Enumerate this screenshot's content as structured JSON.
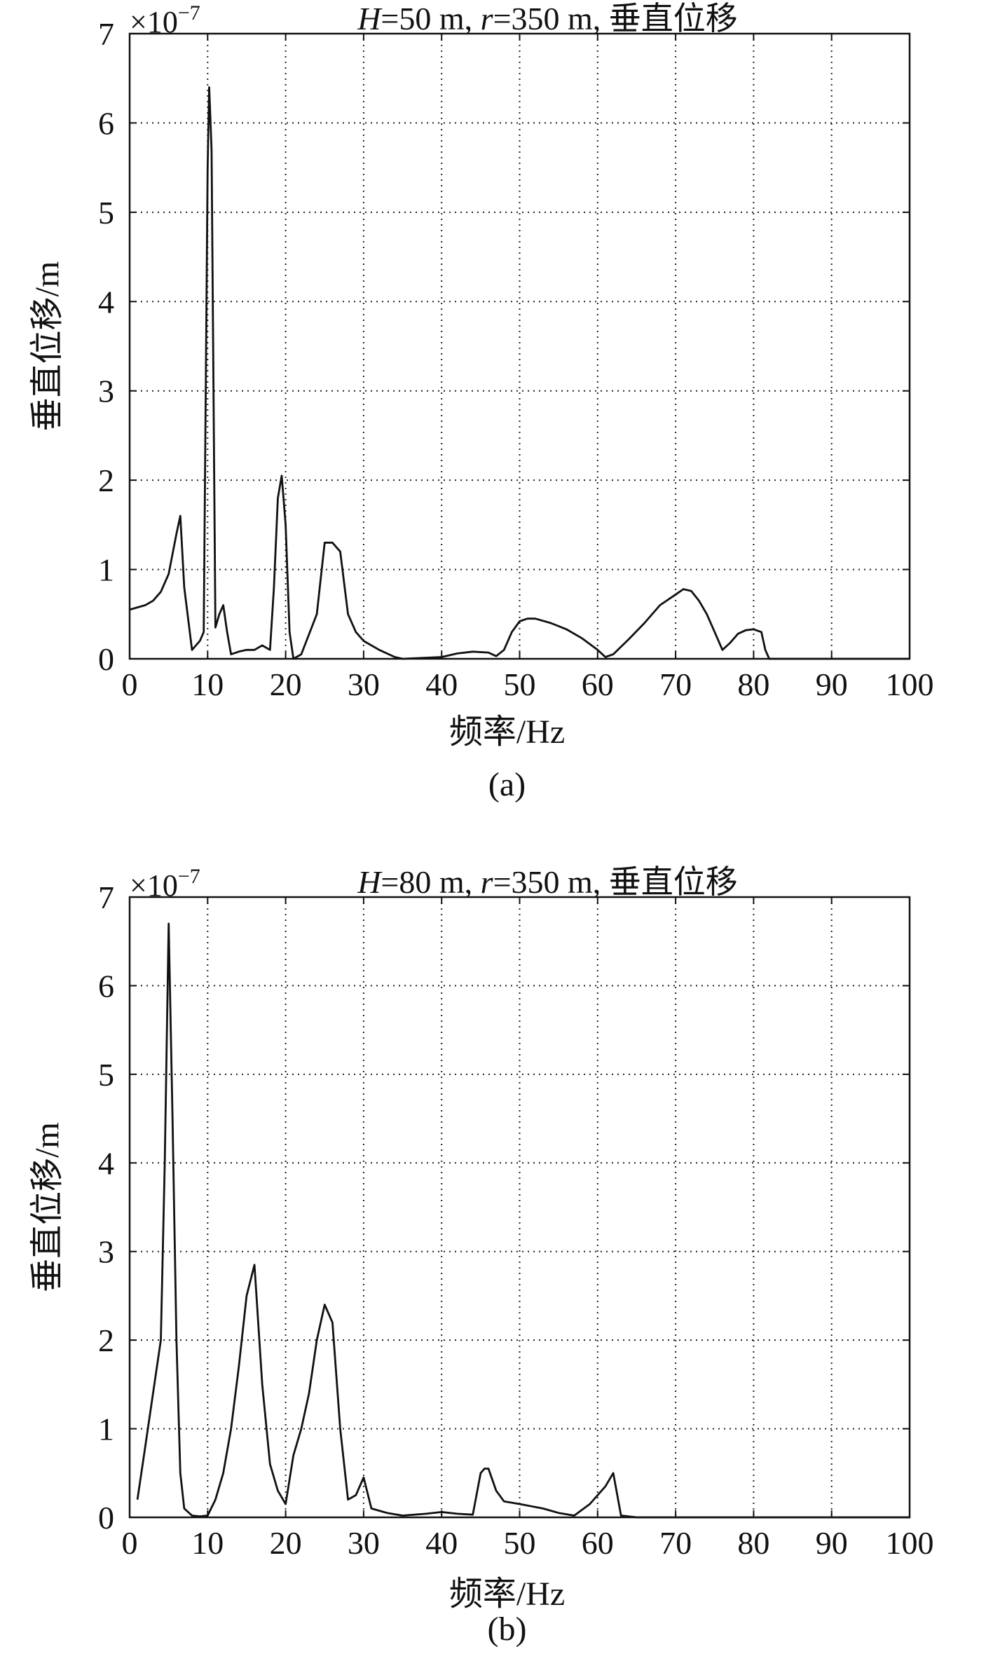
{
  "chart_data": [
    {
      "type": "line",
      "panel_label": "(a)",
      "title_parts": [
        {
          "text": "H",
          "italic": true
        },
        {
          "text": "=50 m, ",
          "italic": false
        },
        {
          "text": "r",
          "italic": true
        },
        {
          "text": "=350 m, 垂直位移",
          "italic": false
        }
      ],
      "exponent_label": "×10",
      "exponent_power": "−7",
      "xlabel": "频率/Hz",
      "ylabel": "垂直位移/m",
      "xlim": [
        0,
        100
      ],
      "ylim": [
        0,
        7
      ],
      "xticks": [
        0,
        10,
        20,
        30,
        40,
        50,
        60,
        70,
        80,
        90,
        100
      ],
      "yticks": [
        0,
        1,
        2,
        3,
        4,
        5,
        6,
        7
      ],
      "grid": true,
      "line_color": "#111111",
      "series": [
        {
          "x": [
            0,
            2,
            3,
            4,
            5,
            6,
            6.5,
            7,
            8,
            9,
            9.5,
            10,
            10.2,
            10.5,
            11,
            11.5,
            12,
            12.5,
            13,
            14,
            15,
            16,
            17,
            18,
            18.5,
            19,
            19.5,
            20,
            20.5,
            21,
            22,
            24,
            25,
            26,
            27,
            28,
            29,
            30,
            32,
            34,
            35,
            40,
            42,
            44,
            46,
            47,
            48,
            49,
            50,
            51,
            52,
            54,
            56,
            58,
            60,
            61,
            62,
            64,
            66,
            68,
            70,
            71,
            72,
            73,
            74,
            75,
            76,
            77,
            78,
            79,
            80,
            81,
            81.5,
            82,
            85,
            90,
            95,
            100
          ],
          "y": [
            0.55,
            0.6,
            0.65,
            0.75,
            0.95,
            1.4,
            1.6,
            0.8,
            0.1,
            0.2,
            0.3,
            5.5,
            6.4,
            5.7,
            0.35,
            0.5,
            0.6,
            0.3,
            0.05,
            0.08,
            0.1,
            0.1,
            0.15,
            0.1,
            0.8,
            1.8,
            2.05,
            1.5,
            0.3,
            0.0,
            0.05,
            0.5,
            1.3,
            1.3,
            1.2,
            0.5,
            0.3,
            0.2,
            0.1,
            0.02,
            0.0,
            0.02,
            0.06,
            0.08,
            0.07,
            0.03,
            0.1,
            0.3,
            0.42,
            0.45,
            0.45,
            0.4,
            0.33,
            0.23,
            0.1,
            0.02,
            0.05,
            0.22,
            0.4,
            0.6,
            0.72,
            0.78,
            0.76,
            0.65,
            0.5,
            0.3,
            0.1,
            0.18,
            0.28,
            0.32,
            0.33,
            0.3,
            0.1,
            0.0,
            0.0,
            0.0,
            0.0,
            0.0
          ]
        }
      ]
    },
    {
      "type": "line",
      "panel_label": "(b)",
      "title_parts": [
        {
          "text": "H",
          "italic": true
        },
        {
          "text": "=80 m, ",
          "italic": false
        },
        {
          "text": "r",
          "italic": true
        },
        {
          "text": "=350 m, 垂直位移",
          "italic": false
        }
      ],
      "exponent_label": "×10",
      "exponent_power": "−7",
      "xlabel": "频率/Hz",
      "ylabel": "垂直位移/m",
      "xlim": [
        0,
        100
      ],
      "ylim": [
        0,
        7
      ],
      "xticks": [
        0,
        10,
        20,
        30,
        40,
        50,
        60,
        70,
        80,
        90,
        100
      ],
      "yticks": [
        0,
        1,
        2,
        3,
        4,
        5,
        6,
        7
      ],
      "grid": true,
      "line_color": "#111111",
      "series": [
        {
          "x": [
            1,
            2,
            3,
            4,
            4.5,
            5,
            5.5,
            6,
            6.5,
            7,
            8,
            9,
            10,
            11,
            12,
            13,
            14,
            15,
            16,
            17,
            18,
            19,
            20,
            21,
            22,
            23,
            24,
            25,
            26,
            27,
            28,
            29,
            30,
            31,
            33,
            35,
            38,
            40,
            42,
            44,
            45,
            45.5,
            46,
            47,
            48,
            50,
            53,
            55,
            57,
            59,
            61,
            62,
            63,
            65,
            70,
            80,
            90,
            100
          ],
          "y": [
            0.2,
            0.8,
            1.4,
            2.0,
            4.0,
            6.7,
            4.5,
            2.0,
            0.5,
            0.1,
            0.02,
            0.01,
            0.02,
            0.2,
            0.5,
            1.0,
            1.7,
            2.5,
            2.85,
            1.5,
            0.6,
            0.3,
            0.15,
            0.7,
            1.0,
            1.4,
            2.0,
            2.4,
            2.2,
            1.0,
            0.2,
            0.25,
            0.45,
            0.1,
            0.05,
            0.02,
            0.04,
            0.06,
            0.04,
            0.03,
            0.5,
            0.55,
            0.55,
            0.3,
            0.18,
            0.15,
            0.1,
            0.05,
            0.02,
            0.15,
            0.35,
            0.5,
            0.02,
            0.0,
            0.0,
            0.0,
            0.0,
            0.0
          ]
        }
      ]
    }
  ]
}
